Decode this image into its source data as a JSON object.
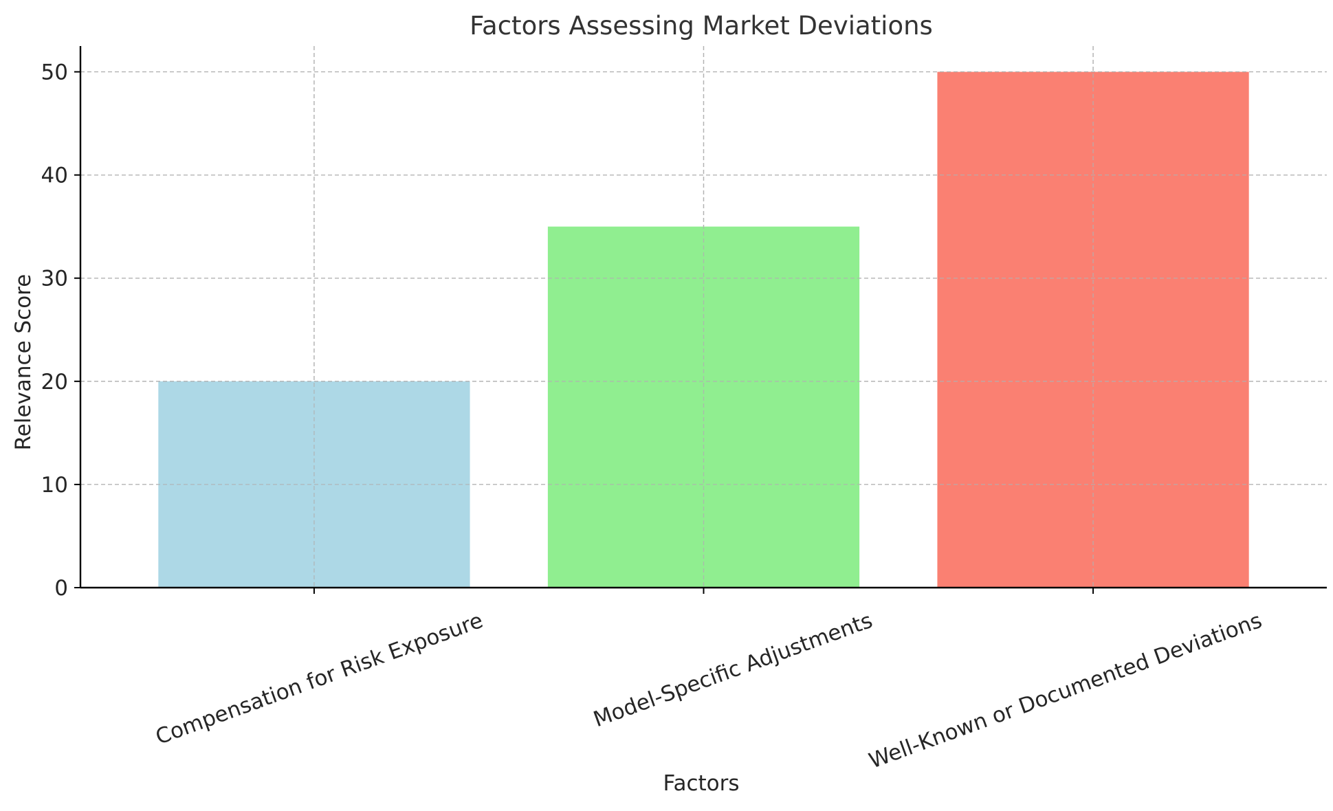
{
  "chart_data": {
    "type": "bar",
    "title": "Factors Assessing Market Deviations",
    "xlabel": "Factors",
    "ylabel": "Relevance Score",
    "categories": [
      "Compensation for Risk Exposure",
      "Model-Specific Adjustments",
      "Well-Known or Documented Deviations"
    ],
    "values": [
      20,
      35,
      50
    ],
    "colors": [
      "#add8e6",
      "#90ee90",
      "#fa8072"
    ],
    "ylim": [
      0,
      52.5
    ],
    "yticks": [
      0,
      10,
      20,
      30,
      40,
      50
    ],
    "grid": true,
    "x_tick_rotation_deg": -20
  }
}
